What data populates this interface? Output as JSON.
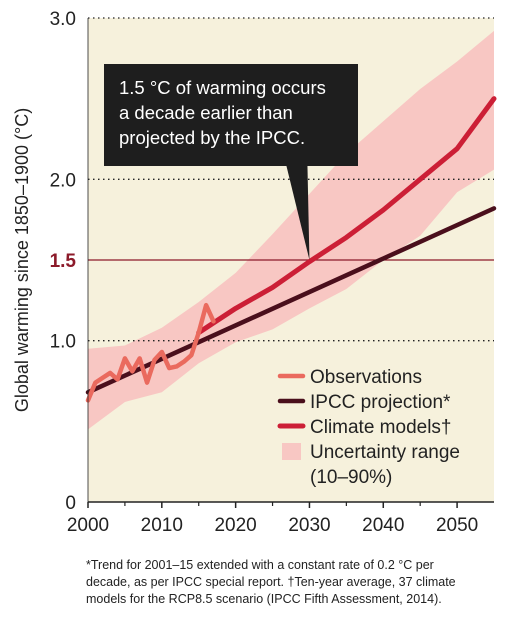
{
  "chart_data": {
    "type": "line",
    "ylabel": "Global warming since 1850–1900 (°C)",
    "xlim": [
      2000,
      2055
    ],
    "ylim": [
      0,
      3.0
    ],
    "x_ticks": [
      "2000",
      "2010",
      "2020",
      "2030",
      "2040",
      "2050"
    ],
    "x_tick_values": [
      2000,
      2010,
      2020,
      2030,
      2040,
      2050
    ],
    "y_ticks": [
      {
        "value": 0,
        "label": "0"
      },
      {
        "value": 1.0,
        "label": "1.0"
      },
      {
        "value": 1.5,
        "label": "1.5"
      },
      {
        "value": 2.0,
        "label": "2.0"
      },
      {
        "value": 3.0,
        "label": "3.0"
      }
    ],
    "threshold": {
      "value": 1.5,
      "label": "1.5"
    },
    "plot_background": "#f6f1dc",
    "series": [
      {
        "name": "Observations",
        "color": "#ea6a5e",
        "x": [
          2000,
          2001,
          2002,
          2003,
          2004,
          2005,
          2006,
          2007,
          2008,
          2009,
          2010,
          2011,
          2012,
          2013,
          2014,
          2015,
          2016,
          2017
        ],
        "y": [
          0.63,
          0.74,
          0.77,
          0.8,
          0.76,
          0.89,
          0.81,
          0.89,
          0.74,
          0.88,
          0.93,
          0.83,
          0.84,
          0.87,
          0.91,
          1.05,
          1.22,
          1.12
        ]
      },
      {
        "name": "IPCC projection*",
        "color": "#4a0f1c",
        "x": [
          2000,
          2055
        ],
        "y": [
          0.68,
          1.82
        ]
      },
      {
        "name": "Climate models†",
        "color": "#cc1f36",
        "x": [
          2015,
          2020,
          2025,
          2030,
          2035,
          2040,
          2045,
          2050,
          2055
        ],
        "y": [
          1.05,
          1.2,
          1.33,
          1.49,
          1.64,
          1.81,
          2.0,
          2.19,
          2.5
        ]
      }
    ],
    "uncertainty": {
      "name": "Uncertainty range",
      "name_line2": "(10–90%)",
      "color": "#f8c7c3",
      "x": [
        2000,
        2005,
        2010,
        2015,
        2020,
        2025,
        2030,
        2035,
        2040,
        2045,
        2050,
        2055
      ],
      "lower": [
        0.45,
        0.62,
        0.68,
        0.86,
        0.99,
        1.07,
        1.2,
        1.32,
        1.5,
        1.65,
        1.92,
        2.06
      ],
      "upper": [
        0.95,
        0.97,
        1.08,
        1.24,
        1.42,
        1.66,
        1.91,
        2.16,
        2.36,
        2.56,
        2.73,
        2.92
      ]
    },
    "annotation": {
      "lines": [
        "1.5 °C of warming occurs",
        "a decade earlier than",
        "projected by the IPCC."
      ],
      "points_to": {
        "x": 2030,
        "y": 1.5
      }
    },
    "legend_placement": "bottom-right"
  },
  "footnote": {
    "lines": [
      "*Trend for 2001–15 extended with a constant rate of 0.2 °C per",
      "decade, as per IPCC special report. †Ten-year average, 37 climate",
      "models for the RCP8.5 scenario (IPCC Fifth Assessment, 2014)."
    ]
  }
}
